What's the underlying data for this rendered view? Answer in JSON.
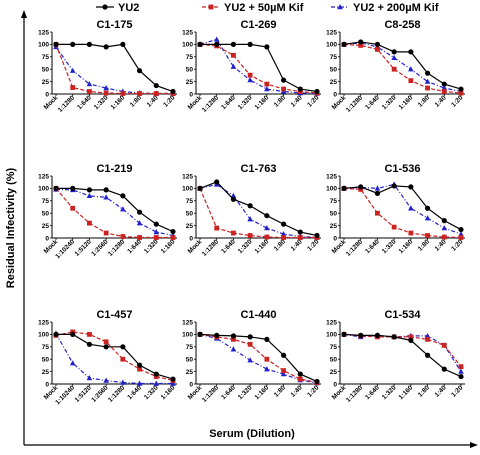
{
  "legend": [
    {
      "name": "YU2",
      "color": "#000000",
      "marker": "circle",
      "dash": "solid"
    },
    {
      "name": "YU2 + 50µM Kif",
      "color": "#cc2222",
      "marker": "square",
      "dash": "dash"
    },
    {
      "name": "YU2 + 200µM Kif",
      "color": "#2222cc",
      "marker": "triangle",
      "dash": "dashdot"
    }
  ],
  "ylabel": "Residual Infectivity (%)",
  "xlabel": "Serum (Dilution)",
  "chart_data": [
    {
      "type": "line",
      "title": "C1-175",
      "categories": [
        "Mock",
        "1:1280",
        "1:640",
        "1:320",
        "1:160",
        "1:80",
        "1:40",
        "1:20"
      ],
      "ylim": [
        0,
        125
      ],
      "yticks": [
        0,
        25,
        50,
        75,
        100,
        125
      ],
      "series": [
        {
          "name": "YU2",
          "values": [
            100,
            100,
            100,
            95,
            100,
            47,
            17,
            5
          ]
        },
        {
          "name": "YU2 + 50µM Kif",
          "values": [
            100,
            13,
            5,
            2,
            1,
            1,
            1,
            1
          ]
        },
        {
          "name": "YU2 + 200µM Kif",
          "values": [
            95,
            47,
            20,
            12,
            5,
            2,
            1,
            1
          ]
        }
      ]
    },
    {
      "type": "line",
      "title": "C1-269",
      "categories": [
        "Mock",
        "1:1280",
        "1:640",
        "1:320",
        "1:160",
        "1:80",
        "1:40",
        "1:20"
      ],
      "ylim": [
        0,
        125
      ],
      "yticks": [
        0,
        25,
        50,
        75,
        100,
        125
      ],
      "series": [
        {
          "name": "YU2",
          "values": [
            100,
            100,
            100,
            100,
            95,
            28,
            10,
            5
          ]
        },
        {
          "name": "YU2 + 50µM Kif",
          "values": [
            100,
            97,
            78,
            38,
            20,
            10,
            5,
            2
          ]
        },
        {
          "name": "YU2 + 200µM Kif",
          "values": [
            100,
            110,
            55,
            28,
            10,
            5,
            2,
            1
          ]
        }
      ]
    },
    {
      "type": "line",
      "title": "C8-258",
      "categories": [
        "Mock",
        "1:1280",
        "1:640",
        "1:320",
        "1:160",
        "1:80",
        "1:40",
        "1:20"
      ],
      "ylim": [
        0,
        125
      ],
      "yticks": [
        0,
        25,
        50,
        75,
        100,
        125
      ],
      "series": [
        {
          "name": "YU2",
          "values": [
            100,
            105,
            100,
            85,
            85,
            42,
            20,
            10
          ]
        },
        {
          "name": "YU2 + 50µM Kif",
          "values": [
            100,
            98,
            90,
            50,
            27,
            12,
            5,
            2
          ]
        },
        {
          "name": "YU2 + 200µM Kif",
          "values": [
            100,
            103,
            95,
            73,
            50,
            25,
            12,
            5
          ]
        }
      ]
    },
    {
      "type": "line",
      "title": "C1-219",
      "categories": [
        "Mock",
        "1:10240",
        "1:5120",
        "1:2560",
        "1:1280",
        "1:640",
        "1:320",
        "1:160"
      ],
      "ylim": [
        0,
        125
      ],
      "yticks": [
        0,
        25,
        50,
        75,
        100,
        125
      ],
      "series": [
        {
          "name": "YU2",
          "values": [
            100,
            100,
            97,
            97,
            85,
            52,
            28,
            13
          ]
        },
        {
          "name": "YU2 + 50µM Kif",
          "values": [
            100,
            60,
            30,
            10,
            3,
            1,
            1,
            1
          ]
        },
        {
          "name": "YU2 + 200µM Kif",
          "values": [
            98,
            97,
            85,
            82,
            58,
            30,
            12,
            5
          ]
        }
      ]
    },
    {
      "type": "line",
      "title": "C1-763",
      "categories": [
        "Mock",
        "1:1280",
        "1:640",
        "1:320",
        "1:160",
        "1:80",
        "1:40",
        "1:20"
      ],
      "ylim": [
        0,
        125
      ],
      "yticks": [
        0,
        25,
        50,
        75,
        100,
        125
      ],
      "series": [
        {
          "name": "YU2",
          "values": [
            100,
            113,
            78,
            65,
            45,
            28,
            12,
            5
          ]
        },
        {
          "name": "YU2 + 50µM Kif",
          "values": [
            100,
            20,
            10,
            5,
            2,
            1,
            1,
            1
          ]
        },
        {
          "name": "YU2 + 200µM Kif",
          "values": [
            100,
            108,
            85,
            38,
            20,
            8,
            3,
            1
          ]
        }
      ]
    },
    {
      "type": "line",
      "title": "C1-536",
      "categories": [
        "Mock",
        "1:1280",
        "1:640",
        "1:320",
        "1:160",
        "1:80",
        "1:40",
        "1:20"
      ],
      "ylim": [
        0,
        125
      ],
      "yticks": [
        0,
        25,
        50,
        75,
        100,
        125
      ],
      "series": [
        {
          "name": "YU2",
          "values": [
            100,
            103,
            90,
            105,
            103,
            60,
            35,
            17
          ]
        },
        {
          "name": "YU2 + 50µM Kif",
          "values": [
            100,
            98,
            50,
            22,
            10,
            5,
            2,
            1
          ]
        },
        {
          "name": "YU2 + 200µM Kif",
          "values": [
            100,
            102,
            100,
            108,
            60,
            40,
            20,
            8
          ]
        }
      ]
    },
    {
      "type": "line",
      "title": "C1-457",
      "categories": [
        "Mock",
        "1:10240",
        "1:5120",
        "1:2560",
        "1:1280",
        "1:640",
        "1:320",
        "1:160"
      ],
      "ylim": [
        0,
        125
      ],
      "yticks": [
        0,
        25,
        50,
        75,
        100,
        125
      ],
      "series": [
        {
          "name": "YU2",
          "values": [
            100,
            100,
            80,
            75,
            75,
            38,
            20,
            10
          ]
        },
        {
          "name": "YU2 + 50µM Kif",
          "values": [
            98,
            105,
            100,
            85,
            50,
            30,
            15,
            7
          ]
        },
        {
          "name": "YU2 + 200µM Kif",
          "values": [
            102,
            42,
            12,
            7,
            3,
            1,
            1,
            1
          ]
        }
      ]
    },
    {
      "type": "line",
      "title": "C1-440",
      "categories": [
        "Mock",
        "1:1280",
        "1:640",
        "1:320",
        "1:160",
        "1:80",
        "1:40",
        "1:20"
      ],
      "ylim": [
        0,
        125
      ],
      "yticks": [
        0,
        25,
        50,
        75,
        100,
        125
      ],
      "series": [
        {
          "name": "YU2",
          "values": [
            100,
            98,
            97,
            95,
            90,
            58,
            20,
            5
          ]
        },
        {
          "name": "YU2 + 50µM Kif",
          "values": [
            100,
            95,
            90,
            80,
            50,
            27,
            10,
            3
          ]
        },
        {
          "name": "YU2 + 200µM Kif",
          "values": [
            100,
            92,
            70,
            48,
            30,
            20,
            8,
            2
          ]
        }
      ]
    },
    {
      "type": "line",
      "title": "C1-534",
      "categories": [
        "Mock",
        "1:1280",
        "1:640",
        "1:320",
        "1:160",
        "1:80",
        "1:40",
        "1:20"
      ],
      "ylim": [
        0,
        125
      ],
      "yticks": [
        0,
        25,
        50,
        75,
        100,
        125
      ],
      "series": [
        {
          "name": "YU2",
          "values": [
            100,
            98,
            98,
            95,
            88,
            58,
            30,
            15
          ]
        },
        {
          "name": "YU2 + 50µM Kif",
          "values": [
            100,
            97,
            95,
            95,
            95,
            90,
            78,
            35
          ]
        },
        {
          "name": "YU2 + 200µM Kif",
          "values": [
            100,
            95,
            98,
            95,
            97,
            97,
            78,
            25
          ]
        }
      ]
    }
  ]
}
